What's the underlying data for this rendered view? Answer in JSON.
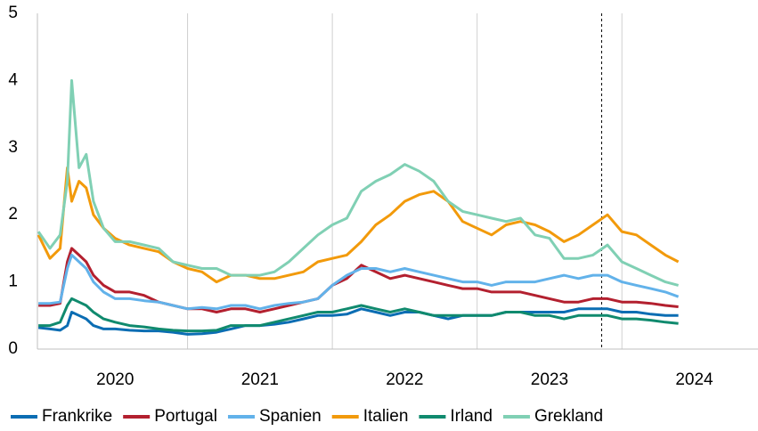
{
  "chart_data": {
    "type": "line",
    "x": [
      2019.97,
      2020.05,
      2020.12,
      2020.17,
      2020.2,
      2020.25,
      2020.3,
      2020.35,
      2020.42,
      2020.5,
      2020.6,
      2020.7,
      2020.8,
      2020.9,
      2021.0,
      2021.1,
      2021.2,
      2021.3,
      2021.4,
      2021.5,
      2021.6,
      2021.7,
      2021.8,
      2021.9,
      2022.0,
      2022.1,
      2022.2,
      2022.3,
      2022.4,
      2022.5,
      2022.6,
      2022.7,
      2022.8,
      2022.9,
      2023.0,
      2023.1,
      2023.2,
      2023.3,
      2023.4,
      2023.5,
      2023.6,
      2023.7,
      2023.8,
      2023.9,
      2024.0,
      2024.1,
      2024.2,
      2024.3,
      2024.39
    ],
    "series": [
      {
        "name": "Frankrike",
        "color": "#0b6db3",
        "values": [
          0.32,
          0.3,
          0.28,
          0.35,
          0.55,
          0.5,
          0.45,
          0.35,
          0.3,
          0.3,
          0.28,
          0.27,
          0.27,
          0.25,
          0.22,
          0.23,
          0.25,
          0.3,
          0.35,
          0.35,
          0.37,
          0.4,
          0.45,
          0.5,
          0.5,
          0.52,
          0.6,
          0.55,
          0.5,
          0.55,
          0.55,
          0.5,
          0.45,
          0.5,
          0.5,
          0.5,
          0.55,
          0.55,
          0.55,
          0.55,
          0.55,
          0.6,
          0.6,
          0.6,
          0.55,
          0.55,
          0.52,
          0.5,
          0.5
        ]
      },
      {
        "name": "Portugal",
        "color": "#b3202f",
        "values": [
          0.65,
          0.65,
          0.68,
          1.3,
          1.5,
          1.4,
          1.3,
          1.1,
          0.95,
          0.85,
          0.85,
          0.8,
          0.7,
          0.65,
          0.6,
          0.6,
          0.55,
          0.6,
          0.6,
          0.55,
          0.6,
          0.65,
          0.7,
          0.75,
          0.95,
          1.05,
          1.25,
          1.15,
          1.05,
          1.1,
          1.05,
          1.0,
          0.95,
          0.9,
          0.9,
          0.85,
          0.85,
          0.85,
          0.8,
          0.75,
          0.7,
          0.7,
          0.75,
          0.75,
          0.7,
          0.7,
          0.68,
          0.65,
          0.63
        ]
      },
      {
        "name": "Spanien",
        "color": "#62b2ea",
        "values": [
          0.68,
          0.68,
          0.7,
          1.2,
          1.4,
          1.3,
          1.2,
          1.0,
          0.85,
          0.75,
          0.75,
          0.72,
          0.7,
          0.65,
          0.6,
          0.62,
          0.6,
          0.65,
          0.65,
          0.6,
          0.65,
          0.68,
          0.7,
          0.75,
          0.95,
          1.1,
          1.2,
          1.2,
          1.15,
          1.2,
          1.15,
          1.1,
          1.05,
          1.0,
          1.0,
          0.95,
          1.0,
          1.0,
          1.0,
          1.05,
          1.1,
          1.05,
          1.1,
          1.1,
          1.0,
          0.95,
          0.9,
          0.85,
          0.78
        ]
      },
      {
        "name": "Italien",
        "color": "#f29a0b",
        "values": [
          1.7,
          1.35,
          1.5,
          2.7,
          2.2,
          2.5,
          2.4,
          2.0,
          1.8,
          1.65,
          1.55,
          1.5,
          1.45,
          1.3,
          1.2,
          1.15,
          1.0,
          1.1,
          1.1,
          1.05,
          1.05,
          1.1,
          1.15,
          1.3,
          1.35,
          1.4,
          1.6,
          1.85,
          2.0,
          2.2,
          2.3,
          2.35,
          2.2,
          1.9,
          1.8,
          1.7,
          1.85,
          1.9,
          1.85,
          1.75,
          1.6,
          1.7,
          1.85,
          2.0,
          1.75,
          1.7,
          1.55,
          1.4,
          1.3
        ]
      },
      {
        "name": "Irland",
        "color": "#108a6e",
        "values": [
          0.35,
          0.35,
          0.4,
          0.65,
          0.75,
          0.7,
          0.65,
          0.55,
          0.45,
          0.4,
          0.35,
          0.33,
          0.3,
          0.28,
          0.27,
          0.27,
          0.28,
          0.35,
          0.35,
          0.35,
          0.4,
          0.45,
          0.5,
          0.55,
          0.55,
          0.6,
          0.65,
          0.6,
          0.55,
          0.6,
          0.55,
          0.5,
          0.5,
          0.5,
          0.5,
          0.5,
          0.55,
          0.55,
          0.5,
          0.5,
          0.45,
          0.5,
          0.5,
          0.5,
          0.45,
          0.45,
          0.43,
          0.4,
          0.38
        ]
      },
      {
        "name": "Grekland",
        "color": "#80d0b4",
        "values": [
          1.75,
          1.5,
          1.7,
          2.5,
          4.0,
          2.7,
          2.9,
          2.2,
          1.8,
          1.6,
          1.6,
          1.55,
          1.5,
          1.3,
          1.25,
          1.2,
          1.2,
          1.1,
          1.1,
          1.1,
          1.15,
          1.3,
          1.5,
          1.7,
          1.85,
          1.95,
          2.35,
          2.5,
          2.6,
          2.75,
          2.65,
          2.5,
          2.2,
          2.05,
          2.0,
          1.95,
          1.9,
          1.95,
          1.7,
          1.65,
          1.35,
          1.35,
          1.4,
          1.55,
          1.3,
          1.2,
          1.1,
          1.0,
          0.95
        ]
      }
    ],
    "xlim": [
      2019.963,
      2024.94
    ],
    "xticks": [
      {
        "value": 2020.5,
        "label": "2020"
      },
      {
        "value": 2021.5,
        "label": "2021"
      },
      {
        "value": 2022.5,
        "label": "2022"
      },
      {
        "value": 2023.5,
        "label": "2023"
      },
      {
        "value": 2024.5,
        "label": "2024"
      }
    ],
    "xgrid": [
      2021,
      2022,
      2023,
      2024
    ],
    "vline": 2023.86,
    "ylim": [
      0,
      5
    ],
    "yticks": [
      0,
      1,
      2,
      3,
      4,
      5
    ],
    "legend": "bottom"
  }
}
